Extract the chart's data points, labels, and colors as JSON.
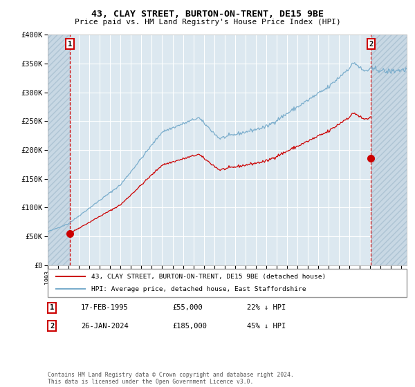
{
  "title": "43, CLAY STREET, BURTON-ON-TRENT, DE15 9BE",
  "subtitle": "Price paid vs. HM Land Registry's House Price Index (HPI)",
  "legend_line1": "43, CLAY STREET, BURTON-ON-TRENT, DE15 9BE (detached house)",
  "legend_line2": "HPI: Average price, detached house, East Staffordshire",
  "footnote": "Contains HM Land Registry data © Crown copyright and database right 2024.\nThis data is licensed under the Open Government Licence v3.0.",
  "sale1_date": "17-FEB-1995",
  "sale1_price": 55000,
  "sale1_note": "22% ↓ HPI",
  "sale2_date": "26-JAN-2024",
  "sale2_price": 185000,
  "sale2_note": "45% ↓ HPI",
  "sale1_year": 1995.12,
  "sale2_year": 2024.07,
  "red_color": "#cc0000",
  "blue_color": "#7aadcc",
  "bg_color": "#dce8f0",
  "grid_color": "#ffffff",
  "ylim": [
    0,
    400000
  ],
  "xlim_start": 1993.0,
  "xlim_end": 2027.5,
  "ytick_labels": [
    "£0",
    "£50K",
    "£100K",
    "£150K",
    "£200K",
    "£250K",
    "£300K",
    "£350K",
    "£400K"
  ],
  "ytick_vals": [
    0,
    50000,
    100000,
    150000,
    200000,
    250000,
    300000,
    350000,
    400000
  ]
}
